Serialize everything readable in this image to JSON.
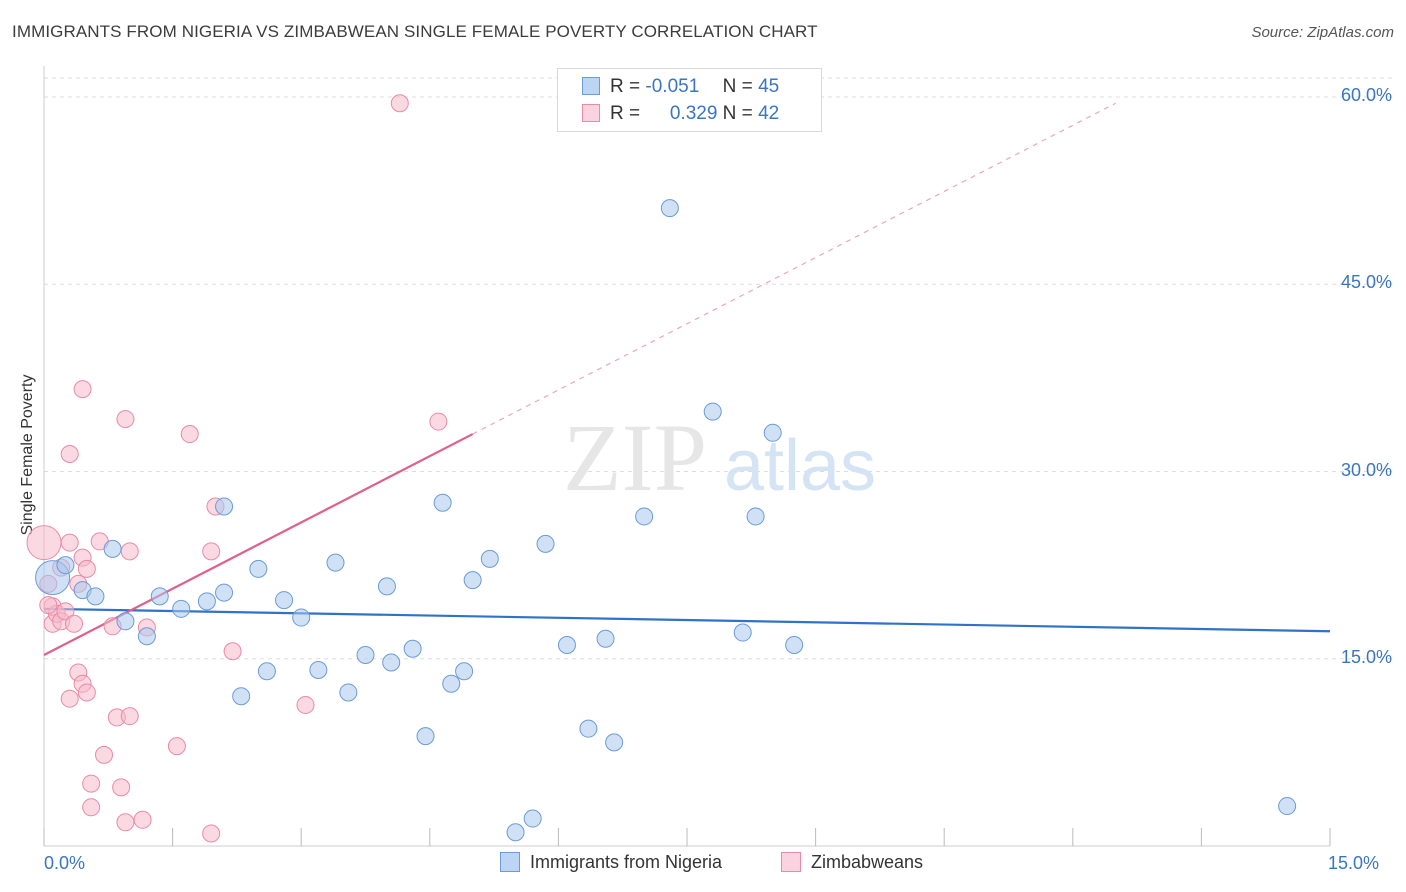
{
  "title": "IMMIGRANTS FROM NIGERIA VS ZIMBABWEAN SINGLE FEMALE POVERTY CORRELATION CHART",
  "source": "Source: ZipAtlas.com",
  "watermark": {
    "zip": "ZIP",
    "atlas": "atlas"
  },
  "colors": {
    "blue_fill": "#a9c8ef",
    "blue_stroke": "#6b9bd8",
    "blue_line": "#2f72c9",
    "pink_fill": "#f5b9cb",
    "pink_stroke": "#e98aa6",
    "pink_line": "#e0608a",
    "tick_text": "#3a75c4",
    "grid": "#dddddd"
  },
  "legend": {
    "series": [
      {
        "r_label": "R =",
        "r_value": "-0.051",
        "n_label": "N =",
        "n_value": "45"
      },
      {
        "r_label": "R =",
        "r_value": "0.329",
        "n_label": "N =",
        "n_value": "42"
      }
    ]
  },
  "bottom_legend": {
    "nigeria": "Immigrants from Nigeria",
    "zimbabwe": "Zimbabweans"
  },
  "chart_data": {
    "type": "scatter",
    "title": "IMMIGRANTS FROM NIGERIA VS ZIMBABWEAN SINGLE FEMALE POVERTY CORRELATION CHART",
    "xlabel": "",
    "ylabel": "Single Female Poverty",
    "xlim": [
      0,
      15
    ],
    "ylim": [
      0,
      60
    ],
    "x_tick_labels": [
      "0.0%",
      "15.0%"
    ],
    "y_ticks": [
      15,
      30,
      45,
      60
    ],
    "y_tick_labels": [
      "15.0%",
      "30.0%",
      "45.0%",
      "60.0%"
    ],
    "grid": true,
    "series": [
      {
        "name": "Immigrants from Nigeria",
        "color": "#a9c8ef",
        "r": -0.051,
        "n": 45,
        "trend": {
          "x": [
            0,
            15
          ],
          "y": [
            19.0,
            17.2
          ],
          "style": "solid"
        },
        "points": [
          {
            "x": 0.1,
            "y": 21.5,
            "big": true
          },
          {
            "x": 0.25,
            "y": 22.5
          },
          {
            "x": 0.45,
            "y": 20.5
          },
          {
            "x": 0.6,
            "y": 20.0
          },
          {
            "x": 0.8,
            "y": 23.8
          },
          {
            "x": 0.95,
            "y": 18.0
          },
          {
            "x": 1.2,
            "y": 16.8
          },
          {
            "x": 1.35,
            "y": 20.0
          },
          {
            "x": 1.6,
            "y": 19.0
          },
          {
            "x": 1.9,
            "y": 19.6
          },
          {
            "x": 2.1,
            "y": 20.3
          },
          {
            "x": 2.1,
            "y": 27.2
          },
          {
            "x": 2.3,
            "y": 12.0
          },
          {
            "x": 2.5,
            "y": 22.2
          },
          {
            "x": 2.6,
            "y": 14.0
          },
          {
            "x": 2.8,
            "y": 19.7
          },
          {
            "x": 3.0,
            "y": 18.3
          },
          {
            "x": 3.2,
            "y": 14.1
          },
          {
            "x": 3.4,
            "y": 22.7
          },
          {
            "x": 3.55,
            "y": 12.3
          },
          {
            "x": 3.75,
            "y": 15.3
          },
          {
            "x": 4.05,
            "y": 14.7
          },
          {
            "x": 4.0,
            "y": 20.8
          },
          {
            "x": 4.3,
            "y": 15.8
          },
          {
            "x": 4.45,
            "y": 8.8
          },
          {
            "x": 4.65,
            "y": 27.5
          },
          {
            "x": 4.75,
            "y": 13.0
          },
          {
            "x": 4.9,
            "y": 14.0
          },
          {
            "x": 5.0,
            "y": 21.3
          },
          {
            "x": 5.2,
            "y": 23.0
          },
          {
            "x": 5.5,
            "y": 1.1
          },
          {
            "x": 5.7,
            "y": 2.2
          },
          {
            "x": 5.85,
            "y": 24.2
          },
          {
            "x": 6.1,
            "y": 16.1
          },
          {
            "x": 6.35,
            "y": 9.4
          },
          {
            "x": 6.55,
            "y": 16.6
          },
          {
            "x": 6.65,
            "y": 8.3
          },
          {
            "x": 7.0,
            "y": 26.4
          },
          {
            "x": 7.3,
            "y": 51.1
          },
          {
            "x": 7.8,
            "y": 34.8
          },
          {
            "x": 8.15,
            "y": 17.1
          },
          {
            "x": 8.3,
            "y": 26.4
          },
          {
            "x": 8.5,
            "y": 33.1
          },
          {
            "x": 8.75,
            "y": 16.1
          },
          {
            "x": 14.5,
            "y": 3.2
          }
        ]
      },
      {
        "name": "Zimbabweans",
        "color": "#f5b9cb",
        "r": 0.329,
        "n": 42,
        "trend": {
          "x": [
            0,
            5.0,
            12.5
          ],
          "y": [
            15.3,
            33.0,
            59.5
          ],
          "style": "solid-then-dashed"
        },
        "points": [
          {
            "x": 0.0,
            "y": 24.3,
            "big": true
          },
          {
            "x": 0.05,
            "y": 21.0
          },
          {
            "x": 0.1,
            "y": 19.2
          },
          {
            "x": 0.1,
            "y": 17.8
          },
          {
            "x": 0.15,
            "y": 18.6
          },
          {
            "x": 0.2,
            "y": 18.0
          },
          {
            "x": 0.25,
            "y": 18.8
          },
          {
            "x": 0.2,
            "y": 22.3
          },
          {
            "x": 0.3,
            "y": 24.3
          },
          {
            "x": 0.3,
            "y": 31.4
          },
          {
            "x": 0.3,
            "y": 11.8
          },
          {
            "x": 0.35,
            "y": 17.8
          },
          {
            "x": 0.4,
            "y": 21.0
          },
          {
            "x": 0.4,
            "y": 13.9
          },
          {
            "x": 0.45,
            "y": 23.1
          },
          {
            "x": 0.45,
            "y": 13.0
          },
          {
            "x": 0.5,
            "y": 22.2
          },
          {
            "x": 0.45,
            "y": 36.6
          },
          {
            "x": 0.5,
            "y": 12.3
          },
          {
            "x": 0.55,
            "y": 5.0
          },
          {
            "x": 0.55,
            "y": 3.1
          },
          {
            "x": 0.65,
            "y": 24.4
          },
          {
            "x": 0.7,
            "y": 7.3
          },
          {
            "x": 0.8,
            "y": 17.6
          },
          {
            "x": 0.85,
            "y": 10.3
          },
          {
            "x": 0.9,
            "y": 4.7
          },
          {
            "x": 0.95,
            "y": 1.9
          },
          {
            "x": 0.95,
            "y": 34.2
          },
          {
            "x": 1.0,
            "y": 10.4
          },
          {
            "x": 1.0,
            "y": 23.6
          },
          {
            "x": 1.15,
            "y": 2.1
          },
          {
            "x": 1.2,
            "y": 17.5
          },
          {
            "x": 1.55,
            "y": 8.0
          },
          {
            "x": 1.7,
            "y": 33.0
          },
          {
            "x": 1.95,
            "y": 1.0
          },
          {
            "x": 1.95,
            "y": 23.6
          },
          {
            "x": 2.0,
            "y": 27.2
          },
          {
            "x": 2.2,
            "y": 15.6
          },
          {
            "x": 3.05,
            "y": 11.3
          },
          {
            "x": 4.15,
            "y": 59.5
          },
          {
            "x": 4.6,
            "y": 34.0
          },
          {
            "x": 0.05,
            "y": 19.3
          }
        ]
      }
    ]
  }
}
